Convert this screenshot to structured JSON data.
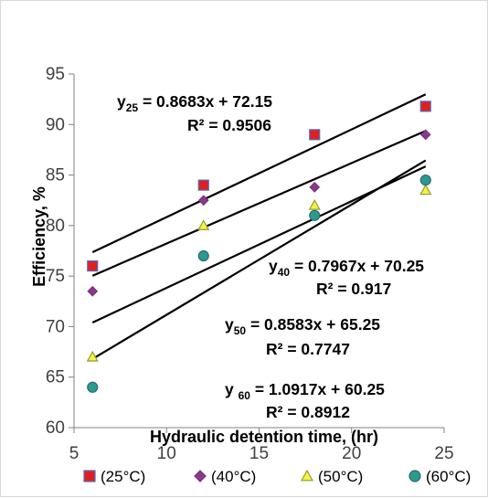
{
  "chart_data": {
    "type": "scatter",
    "title": "",
    "xlabel": "Hydraulic detention time, (hr)",
    "ylabel": "Efficiency, %",
    "xlim": [
      5,
      25
    ],
    "ylim": [
      60,
      95
    ],
    "xticks": [
      "5",
      "10",
      "15",
      "20",
      "25"
    ],
    "yticks": [
      "60",
      "65",
      "70",
      "75",
      "80",
      "85",
      "90",
      "95"
    ],
    "grid": false,
    "legend_position": "bottom",
    "x": [
      6,
      12,
      18,
      24
    ],
    "series": [
      {
        "name": "(25°C)",
        "marker": "square",
        "color": "#e02020",
        "edge": "#4f6fbf",
        "values": [
          76,
          84,
          89,
          91.8
        ],
        "trend": {
          "slope": 0.8683,
          "intercept": 72.15
        },
        "eq_prefix": "y",
        "eq_sub": "25",
        "eq_body": " = 0.8683x + 72.15",
        "r2": "R² = 0.9506"
      },
      {
        "name": "(40°C)",
        "marker": "diamond",
        "color": "#8b3a8b",
        "edge": "#7a2f7a",
        "values": [
          73.5,
          82.5,
          83.8,
          89
        ],
        "trend": {
          "slope": 0.7967,
          "intercept": 70.25
        },
        "eq_prefix": "y",
        "eq_sub": "40",
        "eq_body": " = 0.7967x + 70.25",
        "r2": "R² = 0.917"
      },
      {
        "name": "(50°C)",
        "marker": "triangle",
        "color": "#f2f24a",
        "edge": "#9a9a30",
        "values": [
          67,
          80,
          82,
          83.5
        ],
        "trend": {
          "slope": 0.8583,
          "intercept": 65.25
        },
        "eq_prefix": "y",
        "eq_sub": "50",
        "eq_body": " = 0.8583x + 65.25",
        "r2": "R² = 0.7747"
      },
      {
        "name": "(60°C)",
        "marker": "circle",
        "color": "#2e9a8a",
        "edge": "#2a6a80",
        "values": [
          64,
          77,
          81,
          84.5
        ],
        "trend": {
          "slope": 1.0917,
          "intercept": 60.25
        },
        "eq_prefix": "y ",
        "eq_sub": "60",
        "eq_body": " = 1.0917x + 60.25",
        "r2": "R² = 0.8912"
      }
    ]
  }
}
